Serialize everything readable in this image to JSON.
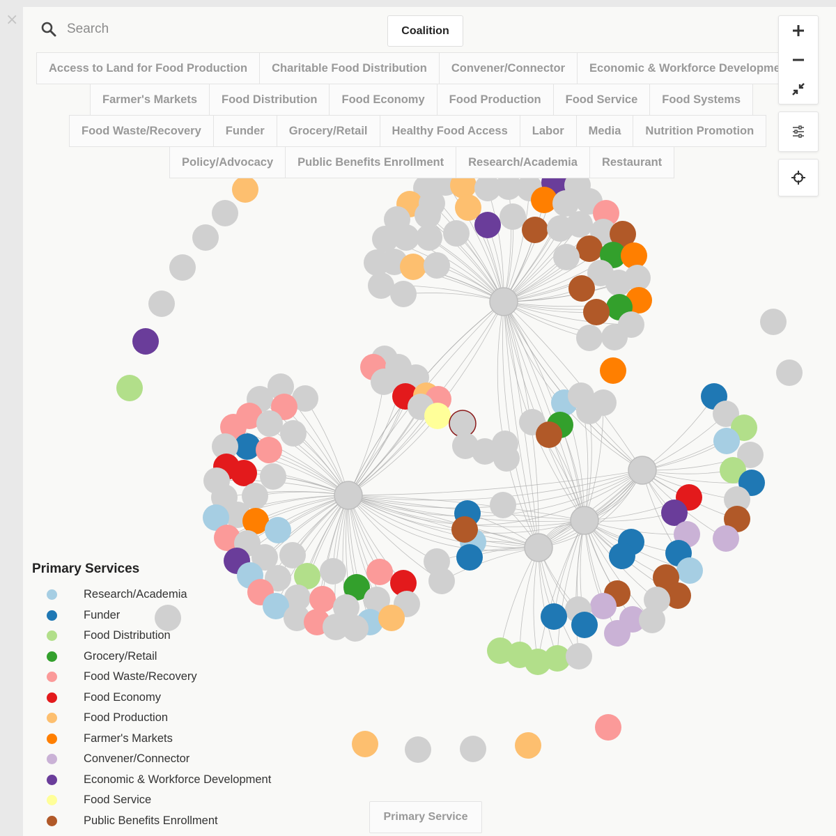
{
  "window": {
    "close_label": "×"
  },
  "search": {
    "placeholder": "Search",
    "icon": "search-icon"
  },
  "view_toggle": {
    "label": "Coalition"
  },
  "filters": {
    "rows": [
      [
        "Access to Land for Food Production",
        "Charitable Food Distribution",
        "Convener/Connector",
        "Economic & Workforce Development"
      ],
      [
        "Farmer's Markets",
        "Food Distribution",
        "Food Economy",
        "Food Production",
        "Food Service",
        "Food Systems"
      ],
      [
        "Food Waste/Recovery",
        "Funder",
        "Grocery/Retail",
        "Healthy Food Access",
        "Labor",
        "Media",
        "Nutrition Promotion"
      ],
      [
        "Policy/Advocacy",
        "Public Benefits Enrollment",
        "Research/Academia",
        "Restaurant"
      ]
    ]
  },
  "toolbar": {
    "zoom_in_icon": "plus-icon",
    "zoom_out_icon": "minus-icon",
    "fit_icon": "collapse-arrows-icon",
    "settings_icon": "sliders-icon",
    "center_icon": "crosshair-icon"
  },
  "legend": {
    "title": "Primary Services",
    "items": [
      {
        "label": "Research/Academia",
        "color": "#a6cee3"
      },
      {
        "label": "Funder",
        "color": "#1f78b4"
      },
      {
        "label": "Food Distribution",
        "color": "#b2df8a"
      },
      {
        "label": "Grocery/Retail",
        "color": "#33a02c"
      },
      {
        "label": "Food Waste/Recovery",
        "color": "#fb9a99"
      },
      {
        "label": "Food Economy",
        "color": "#e31a1c"
      },
      {
        "label": "Food Production",
        "color": "#fdbf6f"
      },
      {
        "label": "Farmer's Markets",
        "color": "#ff7f00"
      },
      {
        "label": "Convener/Connector",
        "color": "#cab2d6"
      },
      {
        "label": "Economic & Workforce Development",
        "color": "#6a3d9a"
      },
      {
        "label": "Food Service",
        "color": "#ffff99"
      },
      {
        "label": "Public Benefits Enrollment",
        "color": "#b15928"
      }
    ]
  },
  "graph_colors": {
    "none": "#d0d0d0",
    "link": "#a9a9a9"
  },
  "bottom_toggle": {
    "label": "Primary Service"
  }
}
